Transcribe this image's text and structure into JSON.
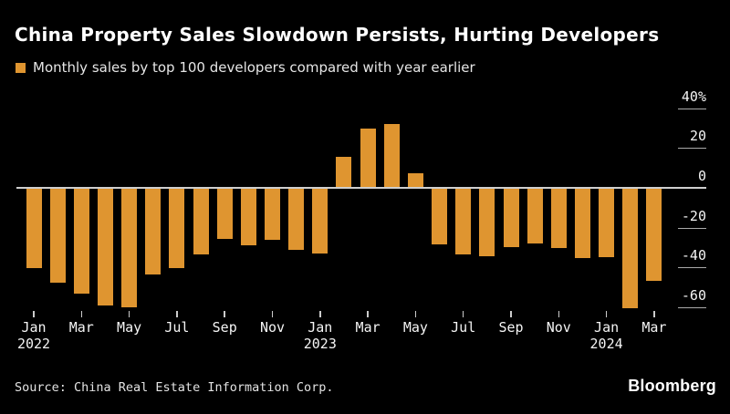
{
  "header": {
    "title": "China Property Sales Slowdown Persists, Hurting Developers",
    "legend_label": "Monthly sales by top 100 developers compared with year earlier"
  },
  "footer": {
    "source": "Source: China Real Estate Information Corp.",
    "brand": "Bloomberg"
  },
  "colors": {
    "background": "#000000",
    "bar": "#DF9530",
    "zero_line": "#CFCFCF",
    "tick": "#AAAAAA",
    "x_tick": "#CCCCCC",
    "text": "#FFFFFF"
  },
  "chart_data": {
    "type": "bar",
    "title": "China Property Sales Slowdown Persists, Hurting Developers",
    "legend": [
      "Monthly sales by top 100 developers compared with year earlier"
    ],
    "unit": "%",
    "xlabel": "",
    "ylabel": "",
    "ylim": [
      -68,
      44
    ],
    "grid": "zero line across plot; short right-side dashes at other ticks",
    "legend_position": "top-left",
    "x": [
      "Jan 2022",
      "Feb 2022",
      "Mar 2022",
      "Apr 2022",
      "May 2022",
      "Jun 2022",
      "Jul 2022",
      "Aug 2022",
      "Sep 2022",
      "Oct 2022",
      "Nov 2022",
      "Dec 2022",
      "Jan 2023",
      "Feb 2023",
      "Mar 2023",
      "Apr 2023",
      "May 2023",
      "Jun 2023",
      "Jul 2023",
      "Aug 2023",
      "Sep 2023",
      "Oct 2023",
      "Nov 2023",
      "Dec 2023",
      "Jan 2024",
      "Feb 2024",
      "Mar 2024"
    ],
    "values": [
      -39.6,
      -47.2,
      -52.7,
      -58.6,
      -59.4,
      -43.0,
      -39.7,
      -32.9,
      -25.4,
      -28.4,
      -25.5,
      -30.8,
      -32.5,
      14.9,
      29.2,
      31.6,
      6.7,
      -28.1,
      -33.1,
      -33.9,
      -29.2,
      -27.5,
      -29.6,
      -34.6,
      -34.2,
      -60.0,
      -46.0
    ],
    "y_ticks": [
      {
        "value": 40,
        "label": "40%"
      },
      {
        "value": 20,
        "label": "20"
      },
      {
        "value": 0,
        "label": "0"
      },
      {
        "value": -20,
        "label": "-20"
      },
      {
        "value": -40,
        "label": "-40"
      },
      {
        "value": -60,
        "label": "-60"
      }
    ],
    "x_ticks": [
      {
        "index": 0,
        "label": "Jan",
        "year": "2022"
      },
      {
        "index": 2,
        "label": "Mar"
      },
      {
        "index": 4,
        "label": "May"
      },
      {
        "index": 6,
        "label": "Jul"
      },
      {
        "index": 8,
        "label": "Sep"
      },
      {
        "index": 10,
        "label": "Nov"
      },
      {
        "index": 12,
        "label": "Jan",
        "year": "2023"
      },
      {
        "index": 14,
        "label": "Mar"
      },
      {
        "index": 16,
        "label": "May"
      },
      {
        "index": 18,
        "label": "Jul"
      },
      {
        "index": 20,
        "label": "Sep"
      },
      {
        "index": 22,
        "label": "Nov"
      },
      {
        "index": 24,
        "label": "Jan",
        "year": "2024"
      },
      {
        "index": 26,
        "label": "Mar"
      }
    ]
  }
}
